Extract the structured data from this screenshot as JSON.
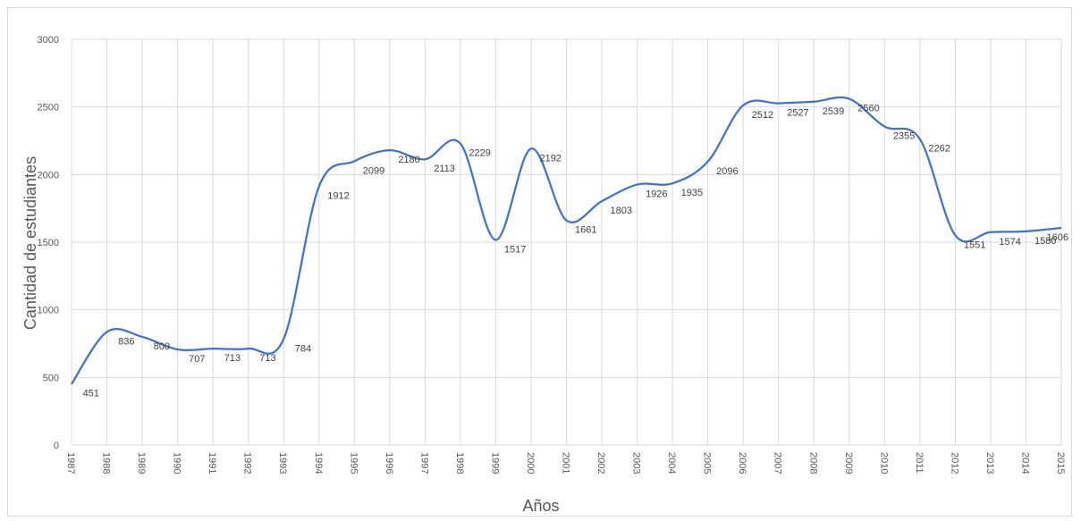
{
  "chart_data": {
    "type": "line",
    "xlabel": "Años",
    "ylabel": "Cantidad de estudiantes",
    "ylim": [
      0,
      3000
    ],
    "yticks": [
      0,
      500,
      1000,
      1500,
      2000,
      2500,
      3000
    ],
    "grid": true,
    "smooth": true,
    "line_color": "#4472c4",
    "categories": [
      "1987",
      "1988",
      "1989",
      "1990",
      "1991",
      "1992",
      "1993",
      "1994",
      "1995",
      "1996",
      "1997",
      "1998",
      "1999",
      "2000",
      "2001",
      "2002",
      "2003",
      "2004",
      "2005",
      "2006",
      "2007",
      "2008",
      "2009",
      "2010",
      "2011",
      "2012",
      "2013",
      "2014",
      "2015"
    ],
    "values": [
      451,
      836,
      800,
      707,
      713,
      713,
      784,
      1912,
      2099,
      2180,
      2113,
      2229,
      1517,
      2192,
      1661,
      1803,
      1926,
      1935,
      2096,
      2512,
      2527,
      2539,
      2560,
      2355,
      2262,
      1551,
      1574,
      1580,
      1606
    ],
    "data_labels": [
      "451",
      "836",
      "800",
      "707",
      "713",
      "713",
      "784",
      "1912",
      "2099",
      "2180",
      "2113",
      "2229",
      "1517",
      "2192",
      "1661",
      "1803",
      "1926",
      "1935",
      "2096",
      "2512",
      "2527",
      "2539",
      "2560",
      "2355",
      "2262",
      "1551",
      "1574",
      "1580",
      "1606"
    ]
  }
}
